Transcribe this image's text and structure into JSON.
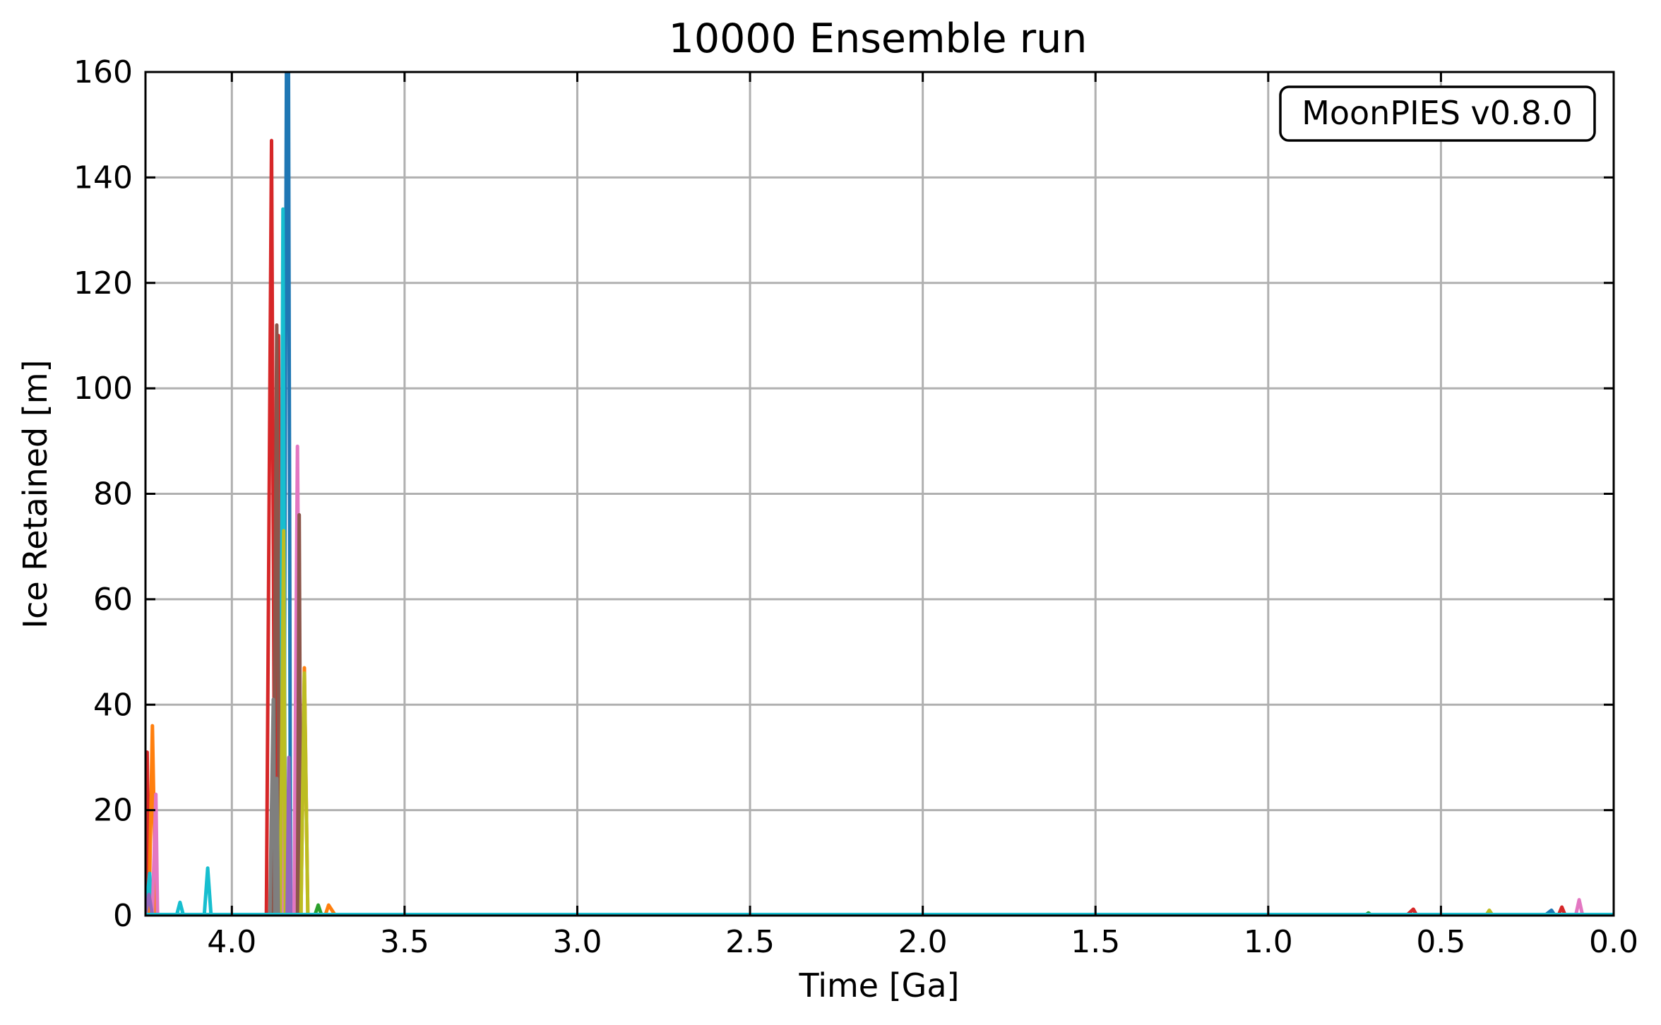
{
  "chart_data": {
    "type": "line",
    "title": "10000 Ensemble run",
    "xlabel": "Time [Ga]",
    "ylabel": "Ice Retained [m]",
    "xlim": [
      4.25,
      0.0
    ],
    "ylim": [
      0,
      160
    ],
    "x_reversed": true,
    "x_ticks": [
      "4.0",
      "3.5",
      "3.0",
      "2.5",
      "2.0",
      "1.5",
      "1.0",
      "0.5",
      "0.0"
    ],
    "y_ticks": [
      "0",
      "20",
      "40",
      "60",
      "80",
      "100",
      "120",
      "140",
      "160"
    ],
    "grid": true,
    "annotation": "MoonPIES v0.8.0",
    "annotation_position": "top-right",
    "series": [
      {
        "color": "#d62728",
        "points": [
          [
            4.25,
            0
          ],
          [
            4.245,
            31
          ],
          [
            4.24,
            0
          ],
          [
            3.9,
            0
          ],
          [
            3.885,
            147
          ],
          [
            3.875,
            0
          ],
          [
            3.865,
            110
          ],
          [
            3.858,
            0
          ],
          [
            0.6,
            0
          ],
          [
            0.58,
            1.2
          ],
          [
            0.57,
            0
          ],
          [
            0.16,
            0
          ],
          [
            0.15,
            1.6
          ],
          [
            0.14,
            0
          ],
          [
            0,
            0
          ]
        ]
      },
      {
        "color": "#ff7f0e",
        "points": [
          [
            4.24,
            0
          ],
          [
            4.23,
            36
          ],
          [
            4.22,
            0
          ],
          [
            3.86,
            0
          ],
          [
            3.85,
            0
          ],
          [
            3.8,
            0
          ],
          [
            3.79,
            47
          ],
          [
            3.78,
            0
          ],
          [
            3.73,
            0
          ],
          [
            3.72,
            2
          ],
          [
            3.7,
            0
          ],
          [
            0,
            0
          ]
        ]
      },
      {
        "color": "#1f77b4",
        "points": [
          [
            4.25,
            0
          ],
          [
            3.85,
            0
          ],
          [
            3.842,
            160
          ],
          [
            3.836,
            160
          ],
          [
            3.83,
            0
          ],
          [
            0.2,
            0
          ],
          [
            0.18,
            1
          ],
          [
            0.17,
            0
          ],
          [
            0,
            0
          ]
        ]
      },
      {
        "color": "#17becf",
        "points": [
          [
            4.25,
            0
          ],
          [
            4.238,
            8
          ],
          [
            4.23,
            0
          ],
          [
            4.16,
            0
          ],
          [
            4.15,
            2.5
          ],
          [
            4.14,
            0
          ],
          [
            4.08,
            0
          ],
          [
            4.07,
            9
          ],
          [
            4.06,
            0
          ],
          [
            3.86,
            0
          ],
          [
            3.852,
            134
          ],
          [
            3.845,
            0
          ],
          [
            0,
            0
          ]
        ]
      },
      {
        "color": "#e377c2",
        "points": [
          [
            4.23,
            0
          ],
          [
            4.22,
            23
          ],
          [
            4.215,
            0
          ],
          [
            3.82,
            0
          ],
          [
            3.81,
            89
          ],
          [
            3.8,
            0
          ],
          [
            3.86,
            0
          ],
          [
            3.855,
            35
          ],
          [
            3.85,
            0
          ],
          [
            0.11,
            0
          ],
          [
            0.1,
            3
          ],
          [
            0.09,
            0
          ],
          [
            0,
            0
          ]
        ]
      },
      {
        "color": "#8c564b",
        "points": [
          [
            3.88,
            0
          ],
          [
            3.87,
            112
          ],
          [
            3.862,
            0
          ],
          [
            3.81,
            0
          ],
          [
            3.805,
            76
          ],
          [
            3.8,
            0
          ],
          [
            0,
            0
          ]
        ]
      },
      {
        "color": "#bcbd22",
        "points": [
          [
            3.86,
            0
          ],
          [
            3.85,
            73
          ],
          [
            3.845,
            0
          ],
          [
            3.8,
            0
          ],
          [
            3.79,
            46
          ],
          [
            3.78,
            0
          ],
          [
            0.37,
            0
          ],
          [
            0.36,
            1
          ],
          [
            0.35,
            0
          ],
          [
            0,
            0
          ]
        ]
      },
      {
        "color": "#7f7f7f",
        "points": [
          [
            3.89,
            0
          ],
          [
            3.88,
            41
          ],
          [
            3.875,
            0
          ],
          [
            3.87,
            26
          ],
          [
            3.865,
            0
          ],
          [
            0,
            0
          ]
        ]
      },
      {
        "color": "#9467bd",
        "points": [
          [
            4.25,
            0
          ],
          [
            4.24,
            4
          ],
          [
            4.23,
            0
          ],
          [
            3.84,
            0
          ],
          [
            3.835,
            30
          ],
          [
            3.83,
            0
          ],
          [
            0,
            0
          ]
        ]
      },
      {
        "color": "#2ca02c",
        "points": [
          [
            3.76,
            0
          ],
          [
            3.75,
            2
          ],
          [
            3.74,
            0
          ],
          [
            0.72,
            0
          ],
          [
            0.71,
            0.5
          ],
          [
            0.7,
            0
          ],
          [
            0,
            0
          ]
        ]
      }
    ]
  }
}
